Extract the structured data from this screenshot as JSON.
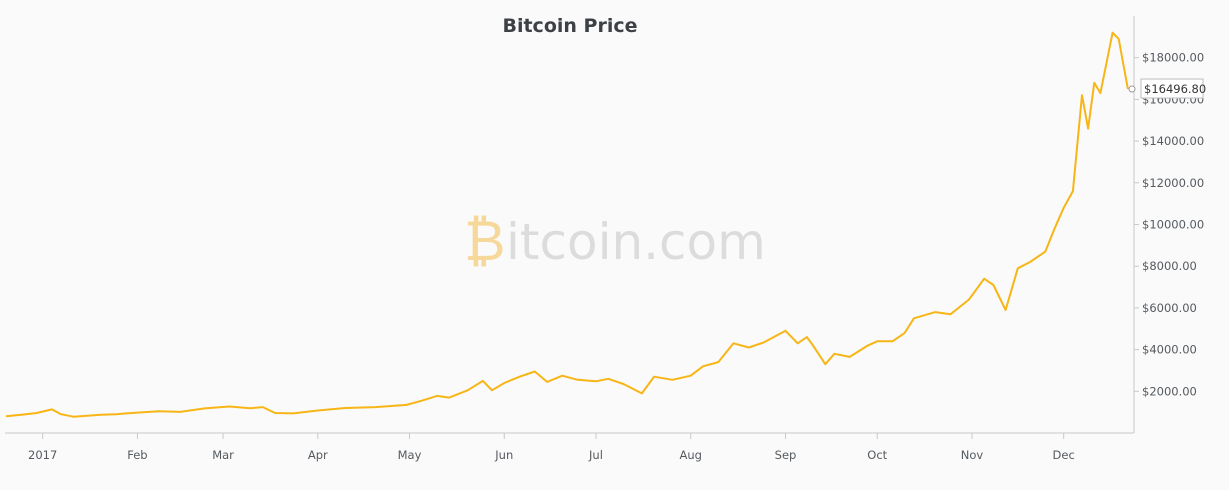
{
  "chart_data": {
    "type": "line",
    "title": "Bitcoin Price",
    "xlabel": "",
    "ylabel": "",
    "x_range": [
      "2016-12-20",
      "2017-12-24"
    ],
    "ylim": [
      0,
      20000
    ],
    "y_ticks": [
      2000,
      4000,
      6000,
      8000,
      10000,
      12000,
      14000,
      16000,
      18000
    ],
    "y_tick_labels": [
      "$2000.00",
      "$4000.00",
      "$6000.00",
      "$8000.00",
      "$10000.00",
      "$12000.00",
      "$14000.00",
      "$16000.00",
      "$18000.00"
    ],
    "x_ticks": [
      "2017-01-01",
      "2017-02-01",
      "2017-03-01",
      "2017-04-01",
      "2017-05-01",
      "2017-06-01",
      "2017-07-01",
      "2017-08-01",
      "2017-09-01",
      "2017-10-01",
      "2017-11-01",
      "2017-12-01"
    ],
    "x_tick_labels": [
      "2017",
      "Feb",
      "Mar",
      "Apr",
      "May",
      "Jun",
      "Jul",
      "Aug",
      "Sep",
      "Oct",
      "Nov",
      "Dec"
    ],
    "grid": false,
    "line_color": "#f7b516",
    "current_value_label": "$16496.80",
    "current_value": 16496.8,
    "watermark": "Bitcoin.com",
    "series": [
      {
        "name": "",
        "points": [
          [
            "2016-12-20",
            800
          ],
          [
            "2016-12-25",
            880
          ],
          [
            "2016-12-30",
            960
          ],
          [
            "2017-01-04",
            1130
          ],
          [
            "2017-01-07",
            900
          ],
          [
            "2017-01-11",
            780
          ],
          [
            "2017-01-15",
            820
          ],
          [
            "2017-01-20",
            880
          ],
          [
            "2017-01-25",
            900
          ],
          [
            "2017-02-01",
            980
          ],
          [
            "2017-02-08",
            1040
          ],
          [
            "2017-02-15",
            1010
          ],
          [
            "2017-02-23",
            1180
          ],
          [
            "2017-03-03",
            1270
          ],
          [
            "2017-03-10",
            1190
          ],
          [
            "2017-03-14",
            1240
          ],
          [
            "2017-03-18",
            960
          ],
          [
            "2017-03-24",
            940
          ],
          [
            "2017-04-01",
            1080
          ],
          [
            "2017-04-10",
            1200
          ],
          [
            "2017-04-20",
            1240
          ],
          [
            "2017-04-30",
            1350
          ],
          [
            "2017-05-05",
            1550
          ],
          [
            "2017-05-10",
            1780
          ],
          [
            "2017-05-14",
            1700
          ],
          [
            "2017-05-20",
            2050
          ],
          [
            "2017-05-25",
            2500
          ],
          [
            "2017-05-28",
            2050
          ],
          [
            "2017-06-01",
            2400
          ],
          [
            "2017-06-06",
            2700
          ],
          [
            "2017-06-11",
            2950
          ],
          [
            "2017-06-15",
            2450
          ],
          [
            "2017-06-20",
            2750
          ],
          [
            "2017-06-25",
            2550
          ],
          [
            "2017-07-01",
            2480
          ],
          [
            "2017-07-05",
            2600
          ],
          [
            "2017-07-10",
            2350
          ],
          [
            "2017-07-16",
            1900
          ],
          [
            "2017-07-20",
            2700
          ],
          [
            "2017-07-26",
            2550
          ],
          [
            "2017-08-01",
            2750
          ],
          [
            "2017-08-05",
            3200
          ],
          [
            "2017-08-10",
            3400
          ],
          [
            "2017-08-15",
            4300
          ],
          [
            "2017-08-20",
            4100
          ],
          [
            "2017-08-25",
            4350
          ],
          [
            "2017-09-01",
            4900
          ],
          [
            "2017-09-05",
            4300
          ],
          [
            "2017-09-08",
            4600
          ],
          [
            "2017-09-10",
            4200
          ],
          [
            "2017-09-14",
            3300
          ],
          [
            "2017-09-17",
            3800
          ],
          [
            "2017-09-22",
            3650
          ],
          [
            "2017-09-28",
            4200
          ],
          [
            "2017-10-01",
            4400
          ],
          [
            "2017-10-06",
            4400
          ],
          [
            "2017-10-10",
            4800
          ],
          [
            "2017-10-13",
            5500
          ],
          [
            "2017-10-20",
            5800
          ],
          [
            "2017-10-25",
            5700
          ],
          [
            "2017-10-31",
            6400
          ],
          [
            "2017-11-05",
            7400
          ],
          [
            "2017-11-08",
            7100
          ],
          [
            "2017-11-12",
            5900
          ],
          [
            "2017-11-16",
            7900
          ],
          [
            "2017-11-20",
            8200
          ],
          [
            "2017-11-25",
            8700
          ],
          [
            "2017-11-28",
            9800
          ],
          [
            "2017-12-01",
            10800
          ],
          [
            "2017-12-04",
            11600
          ],
          [
            "2017-12-07",
            16200
          ],
          [
            "2017-12-09",
            14600
          ],
          [
            "2017-12-11",
            16800
          ],
          [
            "2017-12-13",
            16300
          ],
          [
            "2017-12-17",
            19200
          ],
          [
            "2017-12-19",
            18900
          ],
          [
            "2017-12-22",
            16496.8
          ]
        ]
      }
    ]
  }
}
